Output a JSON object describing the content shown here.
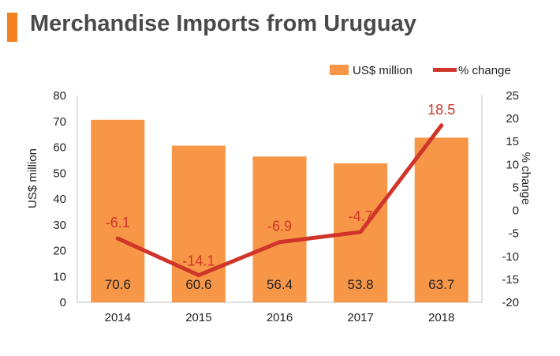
{
  "title": "Merchandise Imports from Uruguay",
  "colors": {
    "accent": "#f58220",
    "bar": "#f79646",
    "line": "#d0352a",
    "title": "#4a4a4a",
    "text": "#222222",
    "axis": "#bfbfbf"
  },
  "chart_data": {
    "type": "bar",
    "categories": [
      "2014",
      "2015",
      "2016",
      "2017",
      "2018"
    ],
    "series": [
      {
        "name": "US$ million",
        "type": "bar",
        "axis": "left",
        "values": [
          70.6,
          60.6,
          56.4,
          53.8,
          63.7
        ]
      },
      {
        "name": "% change",
        "type": "line",
        "axis": "right",
        "values": [
          -6.1,
          -14.1,
          -6.9,
          -4.7,
          18.5
        ]
      }
    ],
    "ylabel": "US$ million",
    "y2label": "% change",
    "ylim": [
      0,
      80
    ],
    "y2lim": [
      -20,
      25
    ],
    "yticks": [
      0,
      10,
      20,
      30,
      40,
      50,
      60,
      70,
      80
    ],
    "y2ticks": [
      -20,
      -15,
      -10,
      -5,
      0,
      5,
      10,
      15,
      20,
      25
    ],
    "grid": false,
    "legend": "top-right",
    "data_labels": true
  }
}
